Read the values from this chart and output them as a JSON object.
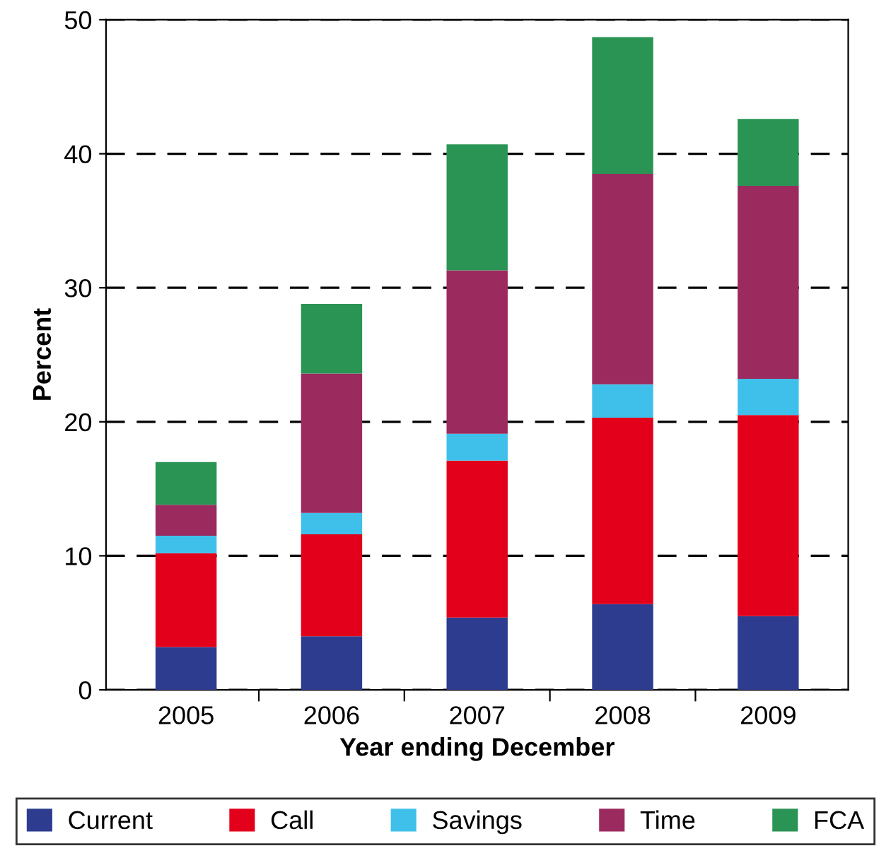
{
  "chart_data": {
    "type": "bar",
    "stacked": true,
    "xlabel": "Year ending December",
    "ylabel": "Percent",
    "categories": [
      "2005",
      "2006",
      "2007",
      "2008",
      "2009"
    ],
    "series": [
      {
        "name": "Current",
        "color": "#2e3c8f",
        "values": [
          3.2,
          4.0,
          5.4,
          6.4,
          5.5
        ]
      },
      {
        "name": "Call",
        "color": "#e2001a",
        "values": [
          7.0,
          7.6,
          11.7,
          13.9,
          15.0
        ]
      },
      {
        "name": "Savings",
        "color": "#3fc0ea",
        "values": [
          1.3,
          1.6,
          2.0,
          2.5,
          2.7
        ]
      },
      {
        "name": "Time",
        "color": "#9b2a5e",
        "values": [
          2.3,
          10.4,
          12.2,
          15.7,
          14.4
        ]
      },
      {
        "name": "FCA",
        "color": "#2a9455",
        "values": [
          3.2,
          5.2,
          9.4,
          10.2,
          5.0
        ]
      }
    ],
    "ylim": [
      0,
      50
    ],
    "yticks": [
      0,
      10,
      20,
      30,
      40,
      50
    ],
    "grid": "y",
    "legend": "bottom"
  }
}
